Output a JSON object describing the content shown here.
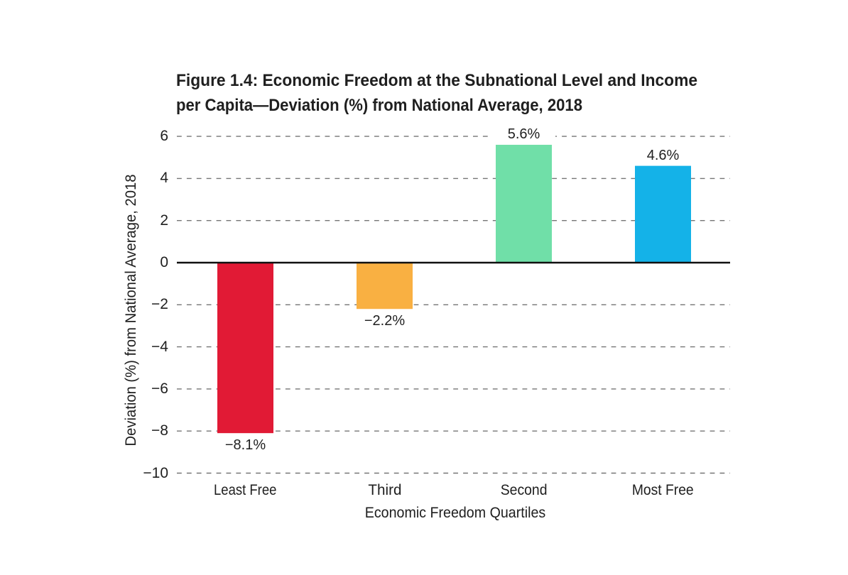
{
  "page": {
    "background_color": "#FFFFFF"
  },
  "chart_data": {
    "type": "bar",
    "title": "Figure 1.4: Economic Freedom at the Subnational Level and Income per Capita—Deviation (%) from National Average, 2018",
    "title_line1": "Figure 1.4: Economic Freedom at the Subnational Level and Income",
    "title_line2": "per Capita—Deviation (%) from National Average, 2018",
    "xlabel": "Economic Freedom Quartiles",
    "ylabel": "Deviation (%) from National Average, 2018",
    "categories": [
      "Least Free",
      "Third",
      "Second",
      "Most Free"
    ],
    "values": [
      -8.1,
      -2.2,
      5.6,
      4.6
    ],
    "value_labels": [
      "−8.1%",
      "−2.2%",
      "5.6%",
      "4.6%"
    ],
    "bar_colors": [
      "#E11A35",
      "#F9B042",
      "#70DFA8",
      "#14B2E8"
    ],
    "yticks": [
      6,
      4,
      2,
      0,
      -2,
      -4,
      -6,
      -8,
      -10
    ],
    "ytick_labels": [
      "6",
      "4",
      "2",
      "0",
      "−2",
      "−4",
      "−6",
      "−8",
      "−10"
    ],
    "ylim": [
      -10,
      6
    ],
    "grid": "horizontal dashed gridlines at every tick",
    "zero_line": "solid black horizontal line at 0",
    "legend": "none",
    "colors": {
      "text": "#1F1F1F",
      "gridline": "#757575",
      "zero_line": "#101010",
      "background": "#FFFFFF"
    }
  }
}
